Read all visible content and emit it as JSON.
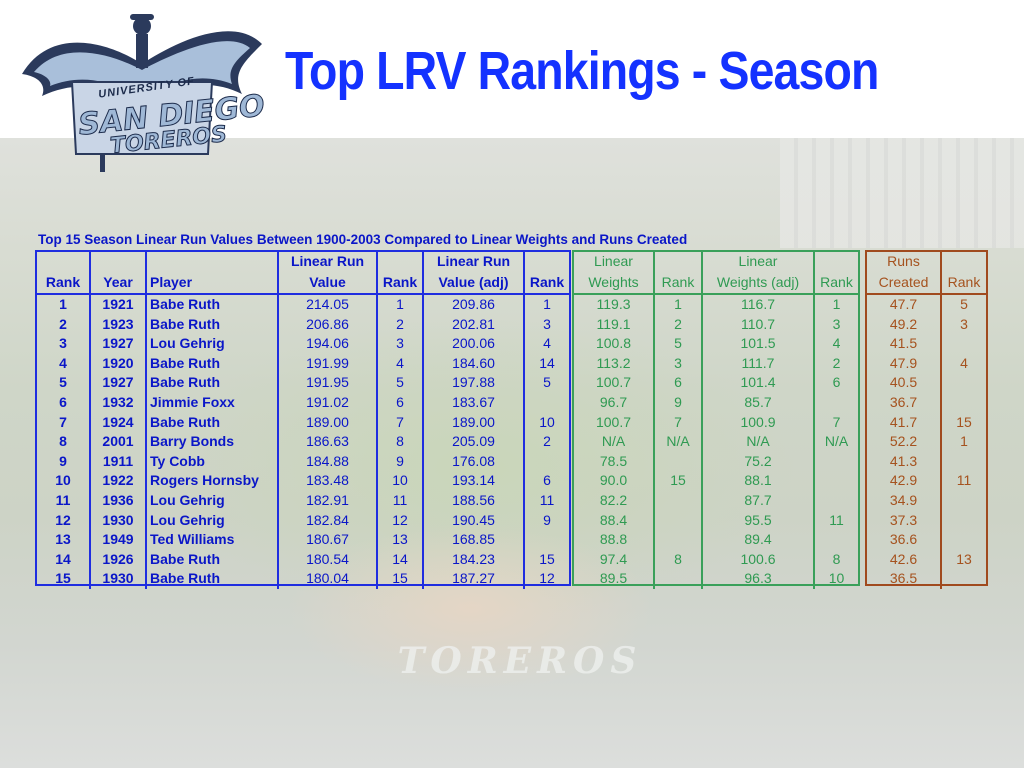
{
  "slide": {
    "title": "Top LRV Rankings - Season",
    "caption": "Top 15 Season Linear Run Values Between 1900-2003 Compared to Linear Weights and Runs Created"
  },
  "logo": {
    "university_of": "UNIVERSITY OF",
    "name": "SAN DIEGO",
    "team": "TOREROS"
  },
  "background": {
    "wordmark": "TOREROS"
  },
  "headers": {
    "lrv_line1": "Linear Run",
    "lrv_line2": "Value",
    "lrv_adj_line1": "Linear Run",
    "lrv_adj_line2": "Value (adj)",
    "lw_line1": "Linear",
    "lw_line2": "Weights",
    "lw_adj_line1": "Linear",
    "lw_adj_line2": "Weights (adj)",
    "rc_line1": "Runs",
    "rc_line2": "Created",
    "rank": "Rank",
    "year": "Year",
    "player": "Player"
  },
  "rows": [
    {
      "rank": "1",
      "year": "1921",
      "player": "Babe Ruth",
      "lrv": "214.05",
      "lrv_rank": "1",
      "lrv_adj": "209.86",
      "lrv_adj_rank": "1",
      "lw": "119.3",
      "lw_rank": "1",
      "lw_adj": "116.7",
      "lw_adj_rank": "1",
      "rc": "47.7",
      "rc_rank": "5"
    },
    {
      "rank": "2",
      "year": "1923",
      "player": "Babe Ruth",
      "lrv": "206.86",
      "lrv_rank": "2",
      "lrv_adj": "202.81",
      "lrv_adj_rank": "3",
      "lw": "119.1",
      "lw_rank": "2",
      "lw_adj": "110.7",
      "lw_adj_rank": "3",
      "rc": "49.2",
      "rc_rank": "3"
    },
    {
      "rank": "3",
      "year": "1927",
      "player": "Lou Gehrig",
      "lrv": "194.06",
      "lrv_rank": "3",
      "lrv_adj": "200.06",
      "lrv_adj_rank": "4",
      "lw": "100.8",
      "lw_rank": "5",
      "lw_adj": "101.5",
      "lw_adj_rank": "4",
      "rc": "41.5",
      "rc_rank": ""
    },
    {
      "rank": "4",
      "year": "1920",
      "player": "Babe Ruth",
      "lrv": "191.99",
      "lrv_rank": "4",
      "lrv_adj": "184.60",
      "lrv_adj_rank": "14",
      "lw": "113.2",
      "lw_rank": "3",
      "lw_adj": "111.7",
      "lw_adj_rank": "2",
      "rc": "47.9",
      "rc_rank": "4"
    },
    {
      "rank": "5",
      "year": "1927",
      "player": "Babe Ruth",
      "lrv": "191.95",
      "lrv_rank": "5",
      "lrv_adj": "197.88",
      "lrv_adj_rank": "5",
      "lw": "100.7",
      "lw_rank": "6",
      "lw_adj": "101.4",
      "lw_adj_rank": "6",
      "rc": "40.5",
      "rc_rank": ""
    },
    {
      "rank": "6",
      "year": "1932",
      "player": "Jimmie Foxx",
      "lrv": "191.02",
      "lrv_rank": "6",
      "lrv_adj": "183.67",
      "lrv_adj_rank": "",
      "lw": "96.7",
      "lw_rank": "9",
      "lw_adj": "85.7",
      "lw_adj_rank": "",
      "rc": "36.7",
      "rc_rank": ""
    },
    {
      "rank": "7",
      "year": "1924",
      "player": "Babe Ruth",
      "lrv": "189.00",
      "lrv_rank": "7",
      "lrv_adj": "189.00",
      "lrv_adj_rank": "10",
      "lw": "100.7",
      "lw_rank": "7",
      "lw_adj": "100.9",
      "lw_adj_rank": "7",
      "rc": "41.7",
      "rc_rank": "15"
    },
    {
      "rank": "8",
      "year": "2001",
      "player": "Barry Bonds",
      "lrv": "186.63",
      "lrv_rank": "8",
      "lrv_adj": "205.09",
      "lrv_adj_rank": "2",
      "lw": "N/A",
      "lw_rank": "N/A",
      "lw_adj": "N/A",
      "lw_adj_rank": "N/A",
      "rc": "52.2",
      "rc_rank": "1"
    },
    {
      "rank": "9",
      "year": "1911",
      "player": "Ty Cobb",
      "lrv": "184.88",
      "lrv_rank": "9",
      "lrv_adj": "176.08",
      "lrv_adj_rank": "",
      "lw": "78.5",
      "lw_rank": "",
      "lw_adj": "75.2",
      "lw_adj_rank": "",
      "rc": "41.3",
      "rc_rank": ""
    },
    {
      "rank": "10",
      "year": "1922",
      "player": "Rogers Hornsby",
      "lrv": "183.48",
      "lrv_rank": "10",
      "lrv_adj": "193.14",
      "lrv_adj_rank": "6",
      "lw": "90.0",
      "lw_rank": "15",
      "lw_adj": "88.1",
      "lw_adj_rank": "",
      "rc": "42.9",
      "rc_rank": "11"
    },
    {
      "rank": "11",
      "year": "1936",
      "player": "Lou Gehrig",
      "lrv": "182.91",
      "lrv_rank": "11",
      "lrv_adj": "188.56",
      "lrv_adj_rank": "11",
      "lw": "82.2",
      "lw_rank": "",
      "lw_adj": "87.7",
      "lw_adj_rank": "",
      "rc": "34.9",
      "rc_rank": ""
    },
    {
      "rank": "12",
      "year": "1930",
      "player": "Lou Gehrig",
      "lrv": "182.84",
      "lrv_rank": "12",
      "lrv_adj": "190.45",
      "lrv_adj_rank": "9",
      "lw": "88.4",
      "lw_rank": "",
      "lw_adj": "95.5",
      "lw_adj_rank": "11",
      "rc": "37.3",
      "rc_rank": ""
    },
    {
      "rank": "13",
      "year": "1949",
      "player": "Ted Williams",
      "lrv": "180.67",
      "lrv_rank": "13",
      "lrv_adj": "168.85",
      "lrv_adj_rank": "",
      "lw": "88.8",
      "lw_rank": "",
      "lw_adj": "89.4",
      "lw_adj_rank": "",
      "rc": "36.6",
      "rc_rank": ""
    },
    {
      "rank": "14",
      "year": "1926",
      "player": "Babe Ruth",
      "lrv": "180.54",
      "lrv_rank": "14",
      "lrv_adj": "184.23",
      "lrv_adj_rank": "15",
      "lw": "97.4",
      "lw_rank": "8",
      "lw_adj": "100.6",
      "lw_adj_rank": "8",
      "rc": "42.6",
      "rc_rank": "13"
    },
    {
      "rank": "15",
      "year": "1930",
      "player": "Babe Ruth",
      "lrv": "180.04",
      "lrv_rank": "15",
      "lrv_adj": "187.27",
      "lrv_adj_rank": "12",
      "lw": "89.5",
      "lw_rank": "",
      "lw_adj": "96.3",
      "lw_adj_rank": "10",
      "rc": "36.5",
      "rc_rank": ""
    }
  ],
  "colors": {
    "title": "#1432ff",
    "lrv_group": "#1f2de0",
    "lw_group": "#3aa05a",
    "rc_group": "#a04a1e"
  }
}
